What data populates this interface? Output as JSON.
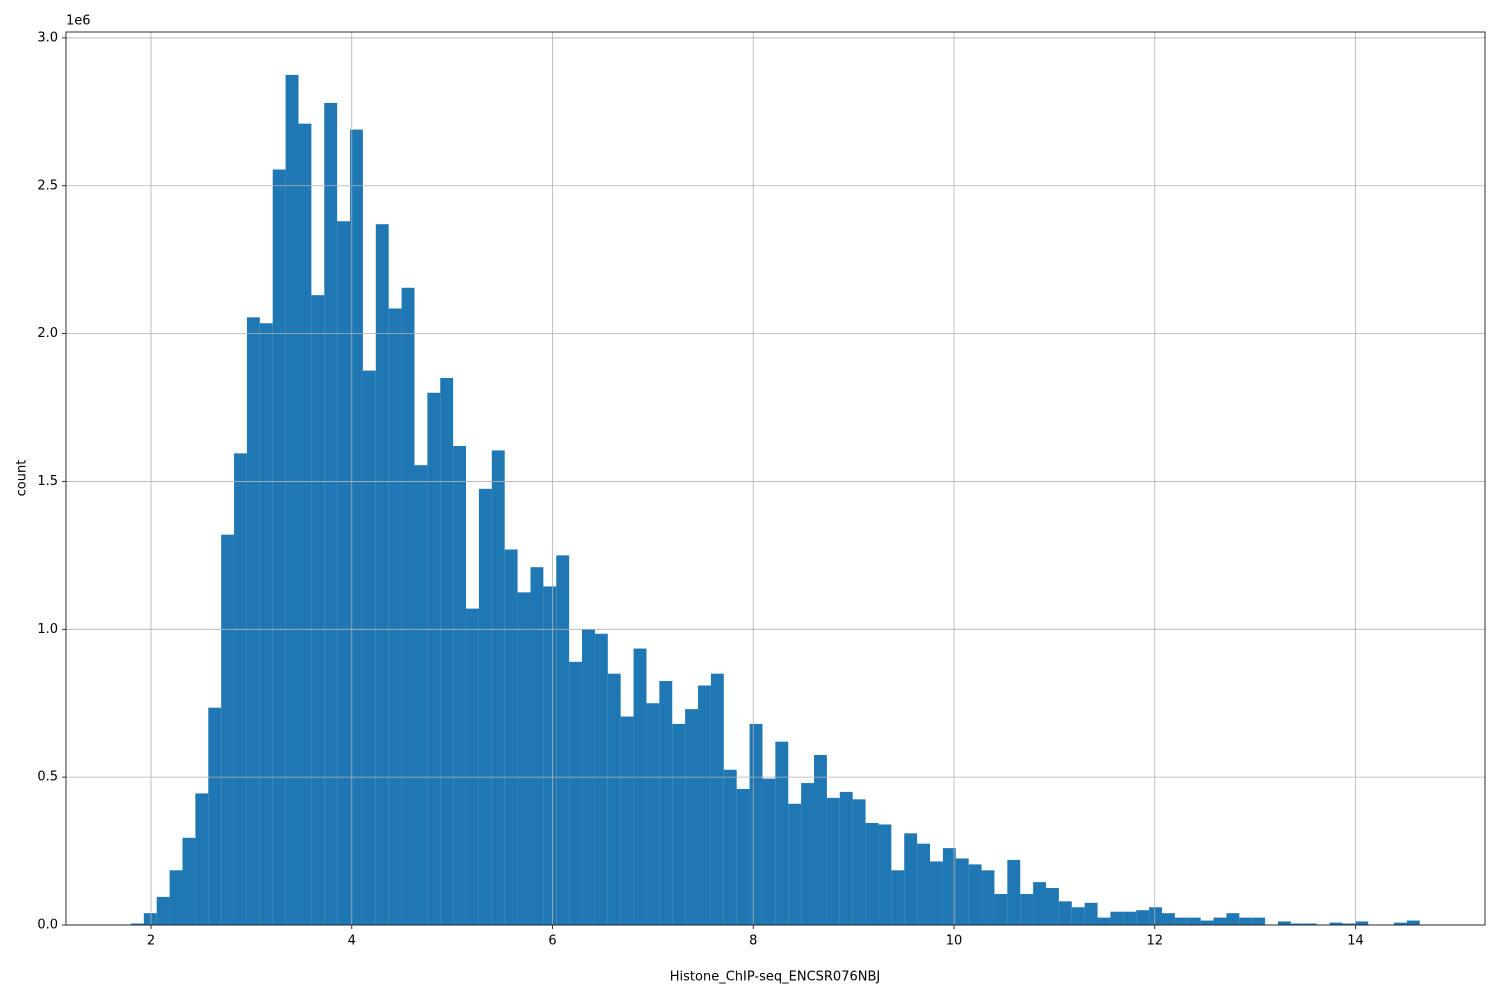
{
  "chart_data": {
    "type": "histogram",
    "x_label": "Histone_ChIP-seq_ENCSR076NBJ",
    "y_label": "count",
    "y_offset_label": "1e6",
    "color": "#1f77b4",
    "grid": true,
    "bins": [
      1.8,
      1.9284,
      2.0568,
      2.1852,
      2.3136,
      2.442,
      2.5704,
      2.6988,
      2.8272,
      2.9556,
      3.084,
      3.2124,
      3.3408,
      3.4692,
      3.5976,
      3.726,
      3.8544,
      3.9828,
      4.1112,
      4.2396,
      4.368,
      4.4964,
      4.6248,
      4.7532,
      4.8816,
      5.01,
      5.1384,
      5.2668,
      5.3952,
      5.5236,
      5.652,
      5.7804,
      5.9088,
      6.0372,
      6.1656,
      6.294,
      6.4224,
      6.5508,
      6.6792,
      6.8076,
      6.936,
      7.0644,
      7.1928,
      7.3212,
      7.4496,
      7.578,
      7.7064,
      7.8348,
      7.9632,
      8.0916,
      8.22,
      8.3484,
      8.4768,
      8.6052,
      8.7336,
      8.862,
      8.9904,
      9.1188,
      9.2472,
      9.3756,
      9.504,
      9.6324,
      9.7608,
      9.8892,
      10.0176,
      10.146,
      10.2744,
      10.4028,
      10.5312,
      10.6596,
      10.788,
      10.9164,
      11.0448,
      11.1732,
      11.3016,
      11.43,
      11.5584,
      11.6868,
      11.8152,
      11.9436,
      12.072,
      12.2004,
      12.3288,
      12.4572,
      12.5856,
      12.714,
      12.8424,
      12.9708,
      13.0992,
      13.2276,
      13.356,
      13.4844,
      13.6128,
      13.7412,
      13.8696,
      13.998,
      14.1264,
      14.2548,
      14.3832,
      14.5116,
      14.64
    ],
    "values": [
      0.005,
      0.04,
      0.095,
      0.185,
      0.295,
      0.445,
      0.735,
      1.32,
      1.595,
      2.055,
      2.035,
      2.555,
      2.875,
      2.71,
      2.13,
      2.78,
      2.38,
      2.69,
      1.875,
      2.37,
      2.085,
      2.155,
      1.555,
      1.8,
      1.85,
      1.62,
      1.07,
      1.475,
      1.605,
      1.27,
      1.125,
      1.21,
      1.145,
      1.25,
      0.89,
      1.0,
      0.985,
      0.85,
      0.705,
      0.935,
      0.75,
      0.825,
      0.68,
      0.73,
      0.81,
      0.85,
      0.525,
      0.46,
      0.68,
      0.495,
      0.62,
      0.41,
      0.48,
      0.575,
      0.43,
      0.45,
      0.425,
      0.345,
      0.34,
      0.185,
      0.31,
      0.275,
      0.215,
      0.26,
      0.225,
      0.205,
      0.185,
      0.105,
      0.22,
      0.105,
      0.145,
      0.125,
      0.08,
      0.06,
      0.075,
      0.025,
      0.045,
      0.045,
      0.05,
      0.06,
      0.04,
      0.025,
      0.025,
      0.015,
      0.025,
      0.04,
      0.025,
      0.025,
      0.0,
      0.012,
      0.005,
      0.005,
      0.0,
      0.008,
      0.005,
      0.012,
      0.0,
      0.0,
      0.008,
      0.015
    ],
    "xlim": [
      1.153,
      15.29
    ],
    "ylim": [
      0,
      3.02
    ],
    "xticks": [
      2,
      4,
      6,
      8,
      10,
      12,
      14
    ],
    "yticks": [
      {
        "value": 0,
        "label": "0.0"
      },
      0.5,
      {
        "value": 1,
        "label": "1.0"
      },
      1.5,
      {
        "value": 2,
        "label": "2.0"
      },
      2.5,
      {
        "value": 3,
        "label": "3.0"
      }
    ]
  }
}
